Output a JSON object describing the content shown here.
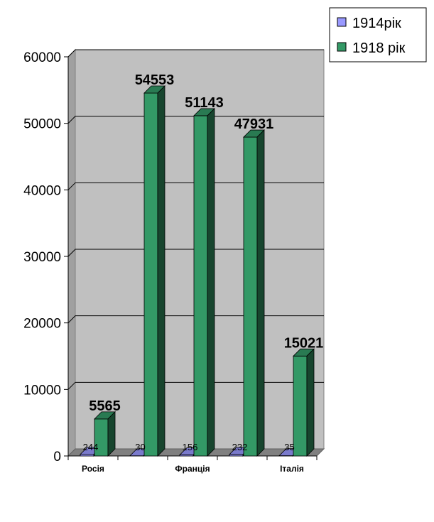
{
  "chart_data": {
    "type": "bar",
    "categories": [
      "Росія",
      "",
      "Франція",
      "",
      "Італія"
    ],
    "series": [
      {
        "name": "1914рік",
        "values": [
          244,
          30,
          156,
          232,
          35
        ],
        "color": "#9999FF"
      },
      {
        "name": "1918 рік",
        "values": [
          5565,
          54553,
          51143,
          47931,
          15021
        ],
        "color": "#339966"
      }
    ],
    "ylim": [
      0,
      60000
    ],
    "yticks": [
      "0",
      "10000",
      "20000",
      "30000",
      "40000",
      "50000",
      "60000"
    ],
    "grid": true,
    "legend_position": "top-right",
    "plot_background": "#C0C0C0"
  }
}
